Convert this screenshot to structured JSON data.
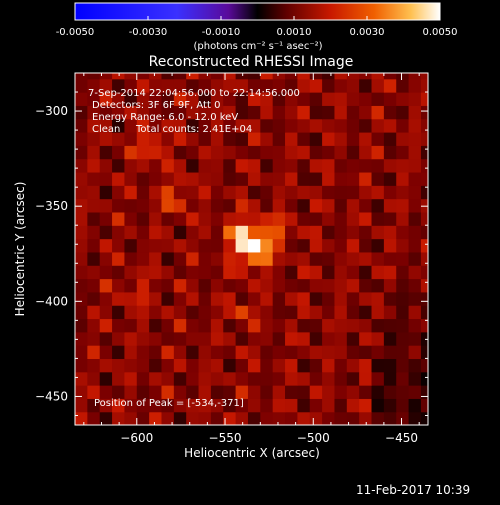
{
  "colorbar": {
    "ticks": [
      "-0.0050",
      "-0.0030",
      "-0.0010",
      "0.0010",
      "0.0030",
      "0.0050"
    ],
    "unit_text": "(photons cm⁻² s⁻¹ asec⁻²)",
    "range": [
      -0.005,
      0.005
    ]
  },
  "chart_data": {
    "type": "heatmap",
    "title": "Reconstructed RHESSI Image",
    "xlabel": "Heliocentric X (arcsec)",
    "ylabel": "Heliocentric Y (arcsec)",
    "xlim": [
      -635,
      -435
    ],
    "ylim": [
      -465,
      -280
    ],
    "x_ticks": [
      -600,
      -550,
      -500,
      -450
    ],
    "y_ticks": [
      -300,
      -350,
      -400,
      -450
    ],
    "x_tick_labels": [
      "−600",
      "−550",
      "−500",
      "−450"
    ],
    "y_tick_labels": [
      "−300",
      "−350",
      "−400",
      "−450"
    ],
    "annotations": [
      "7-Sep-2014 22:04:56.000 to 22:14:56.000",
      "Detectors: 3F 6F 9F, Att 0",
      "Energy Range: 6.0 - 12.0 keV",
      "Clean",
      "Total counts: 2.41E+04"
    ],
    "peak_label": "Position of Peak = [-534,-371]",
    "peak": [
      -534,
      -371
    ],
    "colormap": [
      "#000000",
      "#2a0000",
      "#7a0000",
      "#c81800",
      "#f06000",
      "#ffb040",
      "#ffffff"
    ]
  },
  "footer": {
    "timestamp": "11-Feb-2017 10:39"
  }
}
